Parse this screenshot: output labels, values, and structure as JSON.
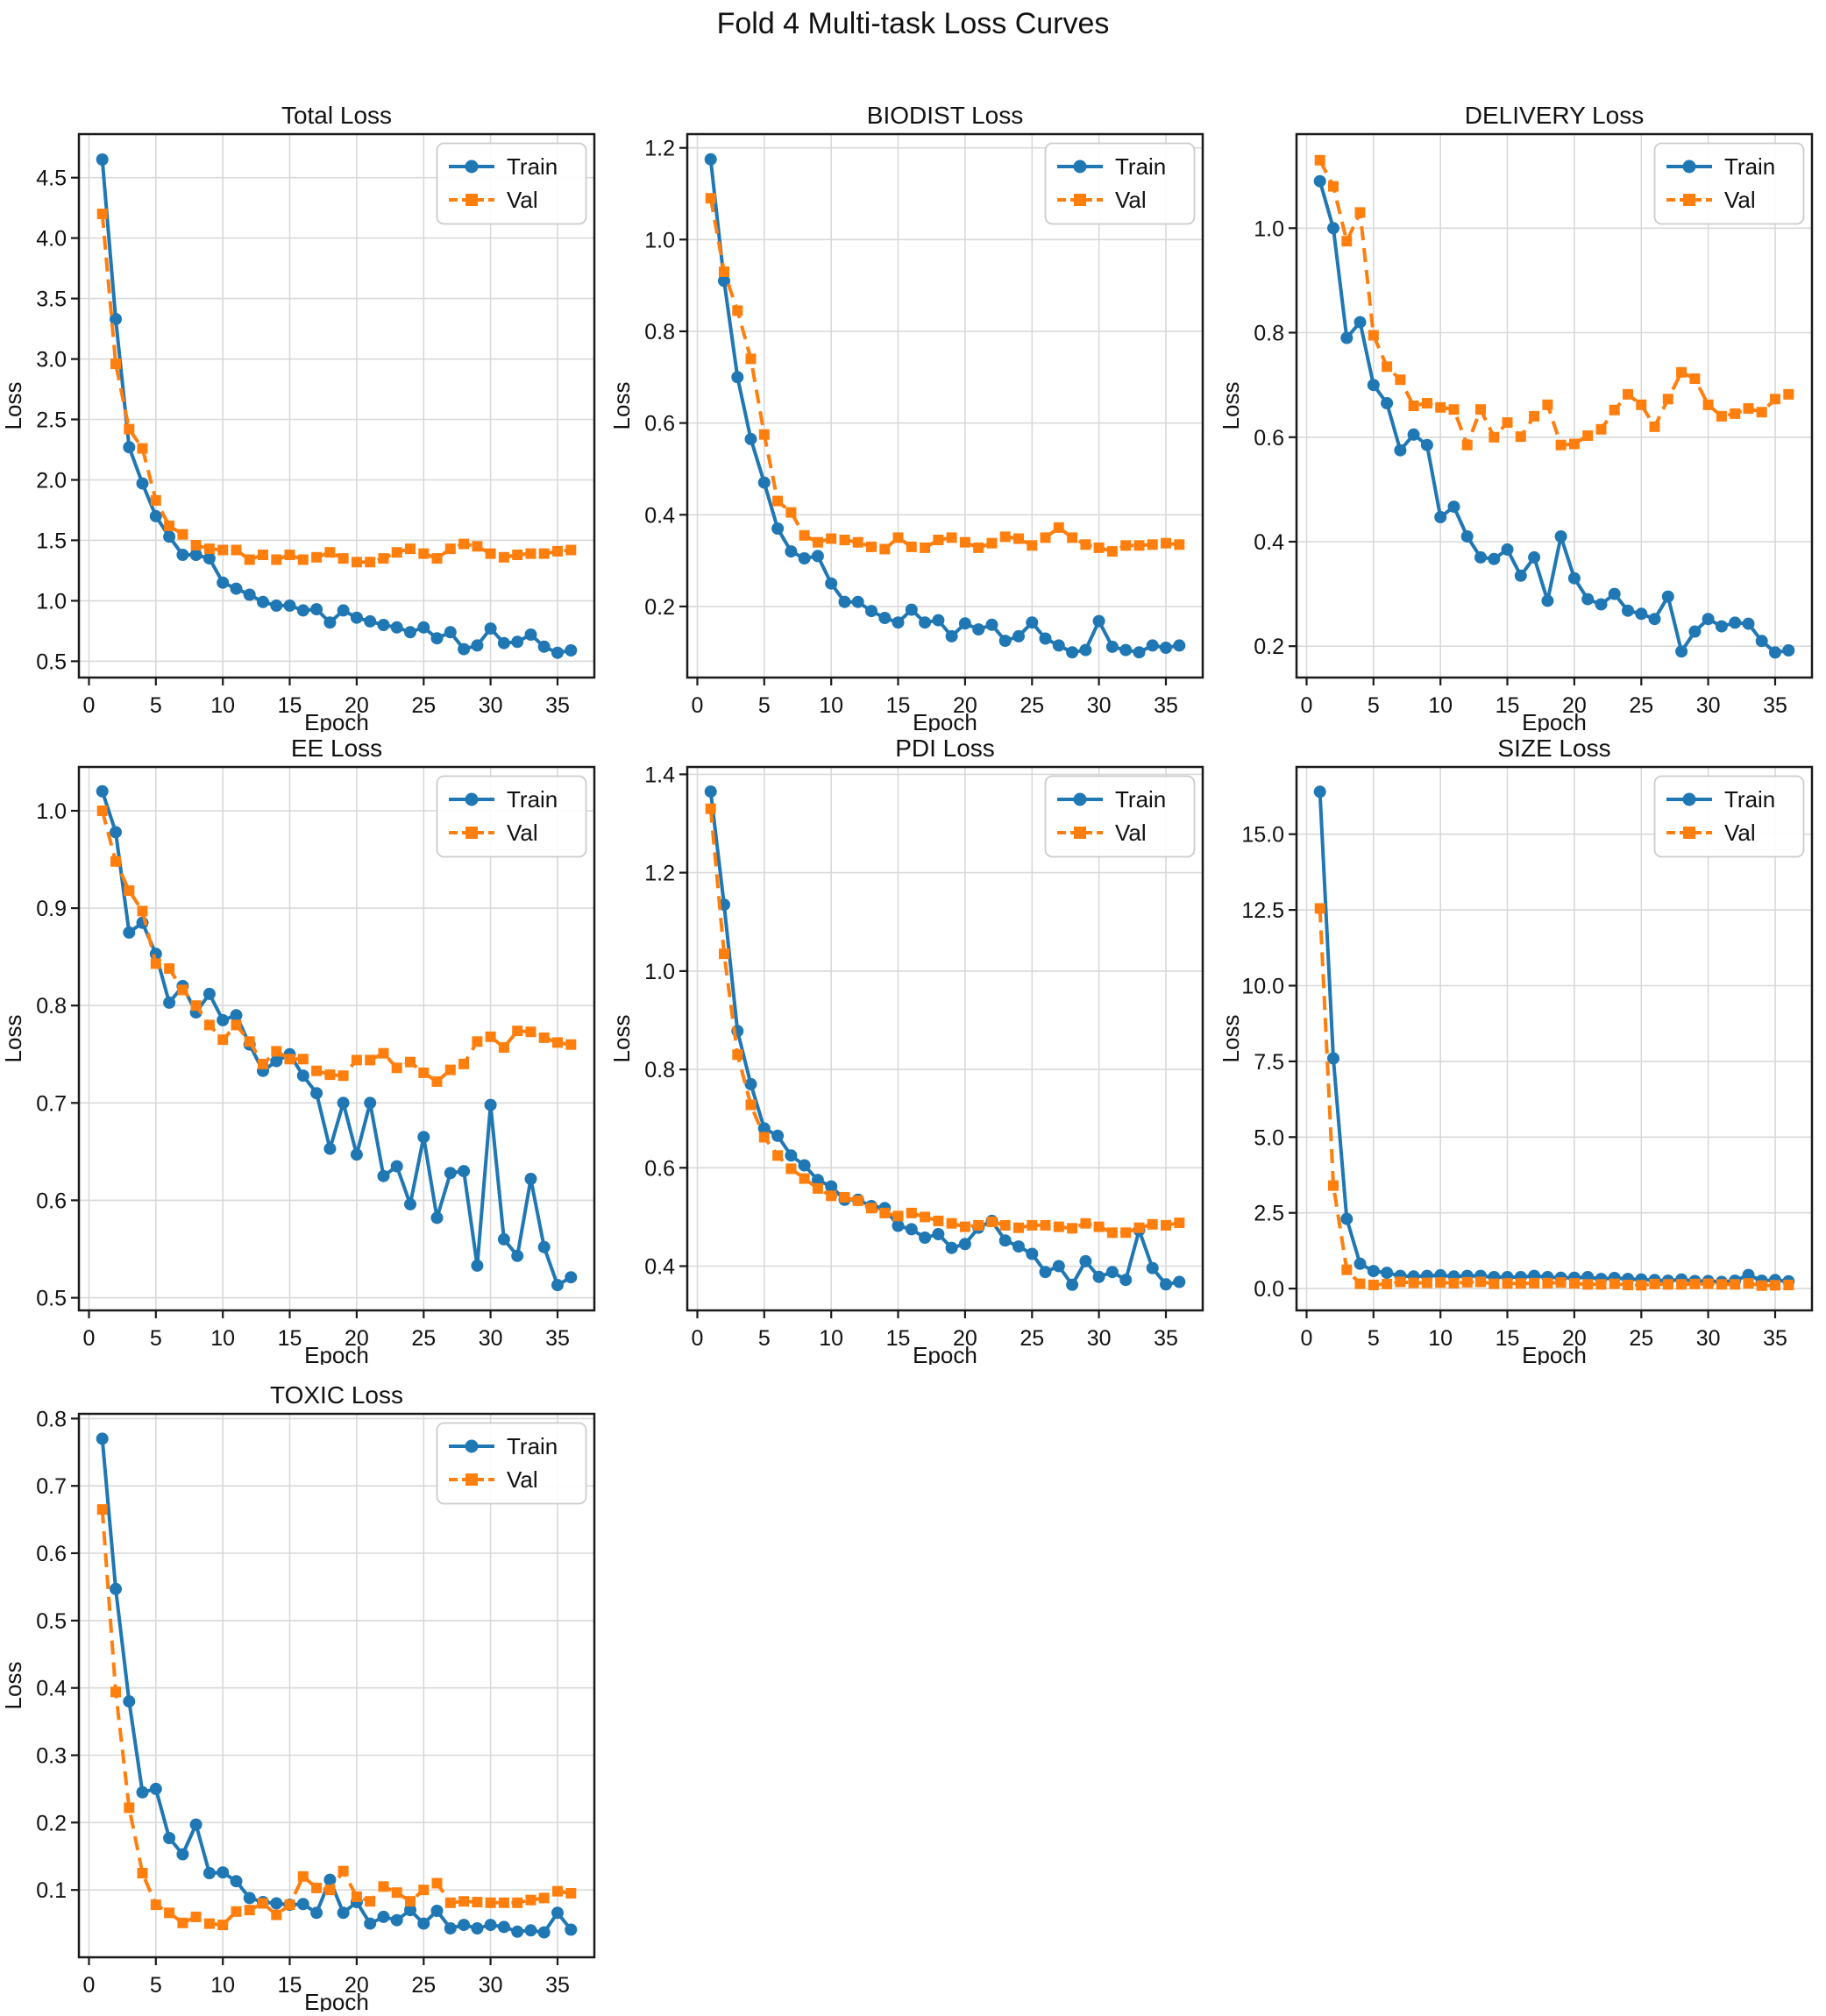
{
  "figure": {
    "title": "Fold 4 Multi-task Loss Curves"
  },
  "colors": {
    "train": "#1f77b4",
    "val": "#ff7f0e",
    "grid": "#d9d9d9",
    "spine": "#1a1a1a",
    "legend_border": "#cccccc",
    "background": "#ffffff"
  },
  "legend": {
    "train_label": "Train",
    "val_label": "Val",
    "position": "upper right"
  },
  "chart_data": [
    {
      "type": "line",
      "slug": "total",
      "title": "Total Loss",
      "xlabel": "Epoch",
      "ylabel": "Loss",
      "xlim": [
        -0.75,
        37.75
      ],
      "ylim": [
        0.365,
        4.86
      ],
      "xticks": [
        0,
        5,
        10,
        15,
        20,
        25,
        30,
        35
      ],
      "yticks": [
        0.5,
        1.0,
        1.5,
        2.0,
        2.5,
        3.0,
        3.5,
        4.0,
        4.5
      ],
      "ydec": 1,
      "grid": true,
      "x": [
        1,
        2,
        3,
        4,
        5,
        6,
        7,
        8,
        9,
        10,
        11,
        12,
        13,
        14,
        15,
        16,
        17,
        18,
        19,
        20,
        21,
        22,
        23,
        24,
        25,
        26,
        27,
        28,
        29,
        30,
        31,
        32,
        33,
        34,
        35,
        36
      ],
      "series": [
        {
          "name": "Train",
          "color": "#1f77b4",
          "line": "solid",
          "marker": "circle",
          "values": [
            4.65,
            3.33,
            2.27,
            1.97,
            1.7,
            1.53,
            1.38,
            1.38,
            1.35,
            1.15,
            1.1,
            1.05,
            0.99,
            0.96,
            0.96,
            0.92,
            0.93,
            0.82,
            0.92,
            0.86,
            0.83,
            0.8,
            0.78,
            0.74,
            0.78,
            0.69,
            0.74,
            0.6,
            0.63,
            0.77,
            0.65,
            0.66,
            0.72,
            0.62,
            0.57,
            0.59
          ]
        },
        {
          "name": "Val",
          "color": "#ff7f0e",
          "line": "dashed",
          "marker": "square",
          "values": [
            4.2,
            2.96,
            2.42,
            2.26,
            1.83,
            1.62,
            1.55,
            1.46,
            1.43,
            1.42,
            1.42,
            1.34,
            1.38,
            1.34,
            1.38,
            1.34,
            1.36,
            1.4,
            1.35,
            1.32,
            1.32,
            1.35,
            1.4,
            1.43,
            1.39,
            1.35,
            1.43,
            1.47,
            1.45,
            1.39,
            1.36,
            1.38,
            1.39,
            1.39,
            1.41,
            1.42
          ]
        }
      ]
    },
    {
      "type": "line",
      "slug": "biodist",
      "title": "BIODIST Loss",
      "xlabel": "Epoch",
      "ylabel": "Loss",
      "xlim": [
        -0.75,
        37.75
      ],
      "ylim": [
        0.045,
        1.23
      ],
      "xticks": [
        0,
        5,
        10,
        15,
        20,
        25,
        30,
        35
      ],
      "yticks": [
        0.2,
        0.4,
        0.6,
        0.8,
        1.0,
        1.2
      ],
      "ydec": 1,
      "grid": true,
      "x": [
        1,
        2,
        3,
        4,
        5,
        6,
        7,
        8,
        9,
        10,
        11,
        12,
        13,
        14,
        15,
        16,
        17,
        18,
        19,
        20,
        21,
        22,
        23,
        24,
        25,
        26,
        27,
        28,
        29,
        30,
        31,
        32,
        33,
        34,
        35,
        36
      ],
      "series": [
        {
          "name": "Train",
          "color": "#1f77b4",
          "line": "solid",
          "marker": "circle",
          "values": [
            1.175,
            0.91,
            0.7,
            0.565,
            0.47,
            0.37,
            0.32,
            0.305,
            0.31,
            0.25,
            0.21,
            0.21,
            0.19,
            0.175,
            0.165,
            0.193,
            0.165,
            0.17,
            0.135,
            0.163,
            0.15,
            0.16,
            0.125,
            0.135,
            0.165,
            0.13,
            0.115,
            0.1,
            0.105,
            0.168,
            0.112,
            0.105,
            0.1,
            0.115,
            0.11,
            0.115
          ]
        },
        {
          "name": "Val",
          "color": "#ff7f0e",
          "line": "dashed",
          "marker": "square",
          "values": [
            1.09,
            0.93,
            0.845,
            0.74,
            0.575,
            0.43,
            0.405,
            0.355,
            0.34,
            0.348,
            0.345,
            0.34,
            0.33,
            0.325,
            0.35,
            0.33,
            0.328,
            0.345,
            0.35,
            0.34,
            0.328,
            0.338,
            0.352,
            0.348,
            0.333,
            0.35,
            0.372,
            0.35,
            0.335,
            0.328,
            0.32,
            0.333,
            0.333,
            0.335,
            0.338,
            0.335
          ]
        }
      ]
    },
    {
      "type": "line",
      "slug": "delivery",
      "title": "DELIVERY Loss",
      "xlabel": "Epoch",
      "ylabel": "Loss",
      "xlim": [
        -0.75,
        37.75
      ],
      "ylim": [
        0.14,
        1.18
      ],
      "xticks": [
        0,
        5,
        10,
        15,
        20,
        25,
        30,
        35
      ],
      "yticks": [
        0.2,
        0.4,
        0.6,
        0.8,
        1.0
      ],
      "ydec": 1,
      "grid": true,
      "x": [
        1,
        2,
        3,
        4,
        5,
        6,
        7,
        8,
        9,
        10,
        11,
        12,
        13,
        14,
        15,
        16,
        17,
        18,
        19,
        20,
        21,
        22,
        23,
        24,
        25,
        26,
        27,
        28,
        29,
        30,
        31,
        32,
        33,
        34,
        35,
        36
      ],
      "series": [
        {
          "name": "Train",
          "color": "#1f77b4",
          "line": "solid",
          "marker": "circle",
          "values": [
            1.09,
            1.0,
            0.79,
            0.82,
            0.7,
            0.665,
            0.575,
            0.605,
            0.585,
            0.447,
            0.467,
            0.41,
            0.37,
            0.367,
            0.385,
            0.335,
            0.37,
            0.287,
            0.41,
            0.33,
            0.29,
            0.28,
            0.3,
            0.268,
            0.262,
            0.252,
            0.295,
            0.19,
            0.228,
            0.252,
            0.238,
            0.245,
            0.243,
            0.21,
            0.188,
            0.192
          ]
        },
        {
          "name": "Val",
          "color": "#ff7f0e",
          "line": "dashed",
          "marker": "square",
          "values": [
            1.13,
            1.08,
            0.975,
            1.03,
            0.795,
            0.735,
            0.71,
            0.66,
            0.665,
            0.657,
            0.653,
            0.585,
            0.653,
            0.6,
            0.628,
            0.601,
            0.64,
            0.662,
            0.585,
            0.587,
            0.603,
            0.615,
            0.652,
            0.682,
            0.662,
            0.62,
            0.673,
            0.724,
            0.712,
            0.662,
            0.64,
            0.645,
            0.655,
            0.648,
            0.673,
            0.682
          ]
        }
      ]
    },
    {
      "type": "line",
      "slug": "ee",
      "title": "EE Loss",
      "xlabel": "Epoch",
      "ylabel": "Loss",
      "xlim": [
        -0.75,
        37.75
      ],
      "ylim": [
        0.487,
        1.045
      ],
      "xticks": [
        0,
        5,
        10,
        15,
        20,
        25,
        30,
        35
      ],
      "yticks": [
        0.5,
        0.6,
        0.7,
        0.8,
        0.9,
        1.0
      ],
      "ydec": 1,
      "grid": true,
      "x": [
        1,
        2,
        3,
        4,
        5,
        6,
        7,
        8,
        9,
        10,
        11,
        12,
        13,
        14,
        15,
        16,
        17,
        18,
        19,
        20,
        21,
        22,
        23,
        24,
        25,
        26,
        27,
        28,
        29,
        30,
        31,
        32,
        33,
        34,
        35,
        36
      ],
      "series": [
        {
          "name": "Train",
          "color": "#1f77b4",
          "line": "solid",
          "marker": "circle",
          "values": [
            1.02,
            0.978,
            0.875,
            0.885,
            0.853,
            0.803,
            0.82,
            0.793,
            0.812,
            0.785,
            0.79,
            0.76,
            0.733,
            0.743,
            0.75,
            0.728,
            0.71,
            0.653,
            0.7,
            0.647,
            0.7,
            0.625,
            0.635,
            0.596,
            0.665,
            0.582,
            0.628,
            0.63,
            0.533,
            0.698,
            0.56,
            0.543,
            0.622,
            0.552,
            0.513,
            0.521
          ]
        },
        {
          "name": "Val",
          "color": "#ff7f0e",
          "line": "dashed",
          "marker": "square",
          "values": [
            1.0,
            0.948,
            0.918,
            0.897,
            0.843,
            0.838,
            0.816,
            0.8,
            0.78,
            0.765,
            0.78,
            0.763,
            0.74,
            0.753,
            0.745,
            0.745,
            0.733,
            0.729,
            0.728,
            0.744,
            0.744,
            0.751,
            0.736,
            0.742,
            0.731,
            0.722,
            0.734,
            0.74,
            0.763,
            0.768,
            0.757,
            0.774,
            0.773,
            0.767,
            0.762,
            0.76
          ]
        }
      ]
    },
    {
      "type": "line",
      "slug": "pdi",
      "title": "PDI Loss",
      "xlabel": "Epoch",
      "ylabel": "Loss",
      "xlim": [
        -0.75,
        37.75
      ],
      "ylim": [
        0.31,
        1.415
      ],
      "xticks": [
        0,
        5,
        10,
        15,
        20,
        25,
        30,
        35
      ],
      "yticks": [
        0.4,
        0.6,
        0.8,
        1.0,
        1.2,
        1.4
      ],
      "ydec": 1,
      "grid": true,
      "x": [
        1,
        2,
        3,
        4,
        5,
        6,
        7,
        8,
        9,
        10,
        11,
        12,
        13,
        14,
        15,
        16,
        17,
        18,
        19,
        20,
        21,
        22,
        23,
        24,
        25,
        26,
        27,
        28,
        29,
        30,
        31,
        32,
        33,
        34,
        35,
        36
      ],
      "series": [
        {
          "name": "Train",
          "color": "#1f77b4",
          "line": "solid",
          "marker": "circle",
          "values": [
            1.365,
            1.135,
            0.878,
            0.77,
            0.68,
            0.665,
            0.625,
            0.605,
            0.575,
            0.562,
            0.535,
            0.535,
            0.522,
            0.518,
            0.482,
            0.475,
            0.458,
            0.465,
            0.437,
            0.445,
            0.478,
            0.492,
            0.452,
            0.44,
            0.425,
            0.388,
            0.4,
            0.362,
            0.41,
            0.378,
            0.388,
            0.372,
            0.473,
            0.396,
            0.363,
            0.368
          ]
        },
        {
          "name": "Val",
          "color": "#ff7f0e",
          "line": "dashed",
          "marker": "square",
          "values": [
            1.33,
            1.035,
            0.83,
            0.728,
            0.662,
            0.625,
            0.598,
            0.578,
            0.558,
            0.543,
            0.54,
            0.533,
            0.518,
            0.508,
            0.502,
            0.508,
            0.5,
            0.492,
            0.487,
            0.48,
            0.483,
            0.49,
            0.483,
            0.478,
            0.483,
            0.483,
            0.48,
            0.477,
            0.487,
            0.48,
            0.468,
            0.468,
            0.478,
            0.485,
            0.483,
            0.488
          ]
        }
      ]
    },
    {
      "type": "line",
      "slug": "size",
      "title": "SIZE Loss",
      "xlabel": "Epoch",
      "ylabel": "Loss",
      "xlim": [
        -0.75,
        37.75
      ],
      "ylim": [
        -0.72,
        17.22
      ],
      "xticks": [
        0,
        5,
        10,
        15,
        20,
        25,
        30,
        35
      ],
      "yticks": [
        0.0,
        2.5,
        5.0,
        7.5,
        10.0,
        12.5,
        15.0
      ],
      "ydec": 1,
      "grid": true,
      "x": [
        1,
        2,
        3,
        4,
        5,
        6,
        7,
        8,
        9,
        10,
        11,
        12,
        13,
        14,
        15,
        16,
        17,
        18,
        19,
        20,
        21,
        22,
        23,
        24,
        25,
        26,
        27,
        28,
        29,
        30,
        31,
        32,
        33,
        34,
        35,
        36
      ],
      "series": [
        {
          "name": "Train",
          "color": "#1f77b4",
          "line": "solid",
          "marker": "circle",
          "values": [
            16.4,
            7.6,
            2.3,
            0.82,
            0.58,
            0.52,
            0.42,
            0.4,
            0.42,
            0.44,
            0.4,
            0.42,
            0.42,
            0.38,
            0.38,
            0.38,
            0.42,
            0.38,
            0.36,
            0.36,
            0.38,
            0.32,
            0.35,
            0.32,
            0.3,
            0.28,
            0.26,
            0.3,
            0.25,
            0.25,
            0.22,
            0.26,
            0.45,
            0.26,
            0.28,
            0.24
          ]
        },
        {
          "name": "Val",
          "color": "#ff7f0e",
          "line": "dashed",
          "marker": "square",
          "values": [
            12.55,
            3.4,
            0.62,
            0.16,
            0.12,
            0.15,
            0.22,
            0.19,
            0.19,
            0.2,
            0.18,
            0.21,
            0.22,
            0.16,
            0.17,
            0.17,
            0.18,
            0.18,
            0.2,
            0.17,
            0.14,
            0.14,
            0.16,
            0.12,
            0.11,
            0.15,
            0.14,
            0.14,
            0.15,
            0.16,
            0.14,
            0.14,
            0.17,
            0.1,
            0.11,
            0.12
          ]
        }
      ]
    },
    {
      "type": "line",
      "slug": "toxic",
      "title": "TOXIC Loss",
      "xlabel": "Epoch",
      "ylabel": "Loss",
      "xlim": [
        -0.75,
        37.75
      ],
      "ylim": [
        0.0,
        0.807
      ],
      "xticks": [
        0,
        5,
        10,
        15,
        20,
        25,
        30,
        35
      ],
      "yticks": [
        0.1,
        0.2,
        0.3,
        0.4,
        0.5,
        0.6,
        0.7,
        0.8
      ],
      "ydec": 1,
      "grid": true,
      "x": [
        1,
        2,
        3,
        4,
        5,
        6,
        7,
        8,
        9,
        10,
        11,
        12,
        13,
        14,
        15,
        16,
        17,
        18,
        19,
        20,
        21,
        22,
        23,
        24,
        25,
        26,
        27,
        28,
        29,
        30,
        31,
        32,
        33,
        34,
        35,
        36
      ],
      "series": [
        {
          "name": "Train",
          "color": "#1f77b4",
          "line": "solid",
          "marker": "circle",
          "values": [
            0.77,
            0.547,
            0.38,
            0.245,
            0.25,
            0.177,
            0.153,
            0.197,
            0.125,
            0.126,
            0.113,
            0.088,
            0.082,
            0.08,
            0.078,
            0.079,
            0.066,
            0.115,
            0.066,
            0.082,
            0.05,
            0.06,
            0.055,
            0.07,
            0.05,
            0.069,
            0.043,
            0.048,
            0.043,
            0.048,
            0.045,
            0.038,
            0.04,
            0.037,
            0.066,
            0.041
          ]
        },
        {
          "name": "Val",
          "color": "#ff7f0e",
          "line": "dashed",
          "marker": "square",
          "values": [
            0.665,
            0.394,
            0.222,
            0.125,
            0.078,
            0.066,
            0.051,
            0.06,
            0.05,
            0.048,
            0.068,
            0.07,
            0.08,
            0.063,
            0.078,
            0.12,
            0.103,
            0.1,
            0.128,
            0.09,
            0.083,
            0.105,
            0.096,
            0.083,
            0.1,
            0.11,
            0.081,
            0.083,
            0.082,
            0.081,
            0.081,
            0.081,
            0.085,
            0.088,
            0.098,
            0.095
          ]
        }
      ]
    }
  ]
}
